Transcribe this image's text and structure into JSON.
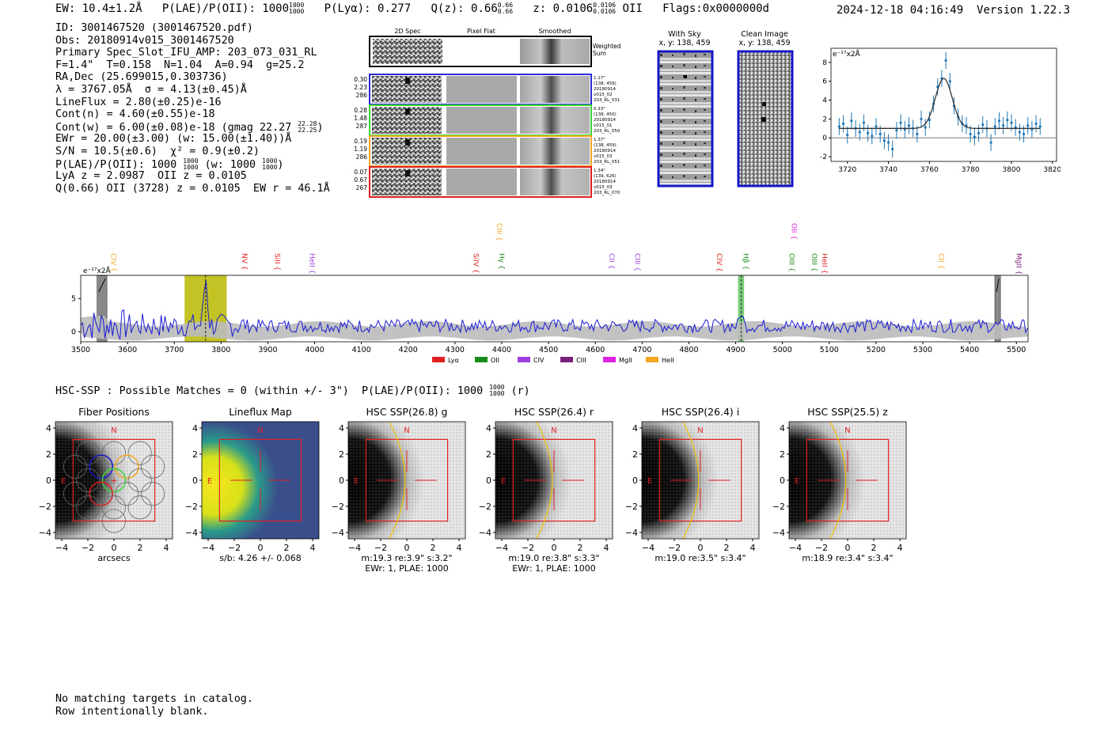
{
  "header": {
    "ew": "EW: 10.4±1.2Å",
    "plae_label": "P(LAE)/P(OII): 1000",
    "plae_sup": "1000",
    "plae_sub": "1000",
    "plya": "P(Lyα): 0.277",
    "qz_label": "Q(z): 0.66",
    "qz_sup": "0.66",
    "qz_sub": "0.66",
    "z_label": "z: 0.0106",
    "z_sup": "0.0106",
    "z_sub": "0.0106",
    "z_line": "OII",
    "flags": "Flags:0x0000000d",
    "datetime": "2024-12-18 04:16:49",
    "version": "Version 1.22.3"
  },
  "info": {
    "id": "ID: 3001467520 (3001467520.pdf)",
    "obs": "Obs: 20180914v015_3001467520",
    "primary": "Primary Spec_Slot_IFU_AMP: 203_073_031_RL",
    "params": "F=1.4\"  T=0.158  N=1.04  A=0.94  g=25.2",
    "radec": "RA,Dec (25.699015,0.303736)",
    "lambda": "λ = 3767.05Å  σ = 4.13(±0.45)Å",
    "lineflux": "LineFlux = 2.80(±0.25)e-16",
    "contn": "Cont(n) = 4.60(±0.55)e-18",
    "contw": "Cont(w) = 6.00(±0.08)e-18 (gmag 22.27",
    "gmag_sup": "22.28",
    "gmag_sub": "22.25",
    "ewr": "EWr = 20.00(±3.00) (w: 15.00(±1.40))Å",
    "sn": "S/N = 10.5(±0.6)  χ² = 0.9(±0.2)",
    "plae": "P(LAE)/P(OII): 1000",
    "plae_sup": "1000",
    "plae_sub": "1000",
    "plae_w": "(w: 1000",
    "plae_w_sup": "1000",
    "plae_w_sub": "1000",
    "lya_oii": "LyA z = 2.0987  OII z = 0.0105",
    "q_line": "Q(0.66) OII (3728) z = 0.0105  EW r = 46.1Å"
  },
  "spec_panel": {
    "col_headers": [
      "2D Spec",
      "Pixel Flat",
      "Smoothed"
    ],
    "weighted_label": "Weighted\nSum",
    "rows": [
      {
        "left": [
          "0.30",
          "2.23",
          "286"
        ],
        "right": [
          "1.17\"",
          "(138, 459)",
          "20180914",
          "v015_02",
          "203_RL_031"
        ],
        "color": "#2b2bd6"
      },
      {
        "left": [
          "0.28",
          "1.48",
          "287"
        ],
        "right": [
          "0.33\"",
          "(138, 450)",
          "20180914",
          "v015_01",
          "203_RL_050"
        ],
        "color": "#3ad63a"
      },
      {
        "left": [
          "0.19",
          "1.19",
          "286"
        ],
        "right": [
          "1.37\"",
          "(138, 459)",
          "20180914",
          "v015_03",
          "203_RL_051"
        ],
        "color": "#f5a623"
      },
      {
        "left": [
          "0.07",
          "0.67",
          "267"
        ],
        "right": [
          "1.34\"",
          "(139, 626)",
          "20180914",
          "v015_03",
          "203_RL_070"
        ],
        "color": "#e02020"
      }
    ]
  },
  "with_sky": {
    "title": "With Sky",
    "coords": "x, y: 138, 459"
  },
  "clean_image": {
    "title": "Clean Image",
    "coords": "x, y: 138, 459"
  },
  "chart_data": [
    {
      "type": "scatter",
      "title": "",
      "ylabel": "e⁻¹⁷x2Å",
      "xlim": [
        3712,
        3822
      ],
      "ylim": [
        -2.5,
        9.5
      ],
      "xticks": [
        3720,
        3740,
        3760,
        3780,
        3800,
        3820
      ],
      "yticks": [
        -2,
        0,
        2,
        4,
        6,
        8
      ],
      "x": [
        3716,
        3718,
        3720,
        3722,
        3724,
        3726,
        3728,
        3730,
        3732,
        3734,
        3736,
        3738,
        3740,
        3742,
        3744,
        3746,
        3748,
        3750,
        3752,
        3754,
        3756,
        3758,
        3760,
        3762,
        3764,
        3766,
        3768,
        3770,
        3772,
        3774,
        3776,
        3778,
        3780,
        3782,
        3784,
        3786,
        3788,
        3790,
        3792,
        3794,
        3796,
        3798,
        3800,
        3802,
        3804,
        3806,
        3808,
        3810,
        3812,
        3814
      ],
      "y": [
        1.2,
        1.5,
        0.3,
        1.8,
        1.0,
        0.6,
        1.6,
        0.5,
        0.2,
        1.2,
        0.4,
        -0.3,
        -0.5,
        -1.2,
        0.8,
        1.6,
        0.9,
        1.3,
        1.0,
        0.4,
        2.0,
        1.1,
        1.9,
        3.6,
        5.4,
        6.3,
        8.2,
        6.0,
        3.4,
        2.2,
        1.5,
        1.3,
        0.4,
        0.1,
        0.5,
        1.4,
        1.0,
        -0.5,
        1.2,
        1.8,
        1.3,
        1.9,
        1.6,
        1.1,
        0.6,
        0.4,
        1.3,
        0.9,
        1.5,
        1.2
      ],
      "fit": {
        "continuum": 1.0,
        "center": 3767,
        "amplitude": 5.3,
        "sigma": 4.13
      }
    },
    {
      "type": "line",
      "title": "",
      "ylabel": "e⁻¹⁷x2Å",
      "xlim": [
        3500,
        5525
      ],
      "ylim": [
        -1.5,
        8.5
      ],
      "xticks": [
        3500,
        3600,
        3700,
        3800,
        3900,
        4000,
        4100,
        4200,
        4300,
        4400,
        4500,
        4600,
        4700,
        4800,
        4900,
        5000,
        5100,
        5200,
        5300,
        5400,
        5500
      ],
      "yticks": [
        0,
        5
      ],
      "emission_peak": {
        "x": 3767,
        "y": 8.0
      },
      "secondary_peak": {
        "x": 4912,
        "y": 3.0
      },
      "highlight_band": [
        3722,
        3812
      ],
      "hbeta_band": [
        4905,
        4918
      ],
      "gray_bands": [
        [
          3535,
          3556
        ],
        [
          5454,
          5466
        ]
      ],
      "line_markers": [
        {
          "name": "CIV",
          "x": 3560,
          "color": "#f5a623"
        },
        {
          "name": "NV",
          "x": 3840,
          "color": "#e02020"
        },
        {
          "name": "SiII",
          "x": 3910,
          "color": "#e02020"
        },
        {
          "name": "HeII",
          "x": 3985,
          "color": "#9b3fe0"
        },
        {
          "name": "SiIV",
          "x": 4335,
          "color": "#e02020"
        },
        {
          "name": "CIII",
          "x": 4385,
          "color": "#f5a623"
        },
        {
          "name": "Hγ",
          "x": 4390,
          "color": "#1a8c1a"
        },
        {
          "name": "CII",
          "x": 4625,
          "color": "#9b3fe0"
        },
        {
          "name": "CIII",
          "x": 4680,
          "color": "#9b3fe0"
        },
        {
          "name": "CIV",
          "x": 4855,
          "color": "#e02020"
        },
        {
          "name": "Hβ",
          "x": 4912,
          "color": "#1a8c1a"
        },
        {
          "name": "OII",
          "x": 5015,
          "color": "#e020e0"
        },
        {
          "name": "OIII",
          "x": 5010,
          "color": "#1a8c1a"
        },
        {
          "name": "OIII",
          "x": 5058,
          "color": "#1a8c1a"
        },
        {
          "name": "HeII",
          "x": 5080,
          "color": "#e02020"
        },
        {
          "name": "CII",
          "x": 5330,
          "color": "#f5a623"
        },
        {
          "name": "MgII",
          "x": 5495,
          "color": "#7a1f7a"
        }
      ],
      "legend": [
        {
          "name": "Lyα",
          "color": "#e02020"
        },
        {
          "name": "OII",
          "color": "#1a8c1a"
        },
        {
          "name": "CIV",
          "color": "#9b3fe0"
        },
        {
          "name": "CIII",
          "color": "#7a1f7a"
        },
        {
          "name": "MgII",
          "color": "#e020e0"
        },
        {
          "name": "HeII",
          "color": "#f5a623"
        }
      ]
    }
  ],
  "hsc": {
    "title": "HSC-SSP : Possible Matches = 0 (within +/- 3\")  P(LAE)/P(OII): 1000",
    "plae_sup": "1000",
    "plae_sub": "1000",
    "band": "(r)",
    "axis_ticks": [
      "4",
      "2",
      "0",
      "−2",
      "−4"
    ],
    "x_ticks": [
      "−4",
      "−2",
      "0",
      "2",
      "4"
    ],
    "panels": [
      {
        "title": "Fiber Positions",
        "caption1": "arcsecs",
        "caption2": ""
      },
      {
        "title": "Lineflux Map",
        "caption1": "s/b: 4.26 +/- 0.068",
        "caption2": ""
      },
      {
        "title": "HSC SSP(26.8) g",
        "caption1": "m:19.3   re:3.9\"   s:3.2\"",
        "caption2": "EWr: 1, PLAE: 1000"
      },
      {
        "title": "HSC SSP(26.4) r",
        "caption1": "m:19.0   re:3.8\"   s:3.3\"",
        "caption2": "EWr: 1, PLAE: 1000"
      },
      {
        "title": "HSC SSP(26.4) i",
        "caption1": "m:19.0   re:3.5\"   s:3.4\"",
        "caption2": ""
      },
      {
        "title": "HSC SSP(25.5) z",
        "caption1": "m:18.9   re:3.4\"   s:3.4\"",
        "caption2": ""
      }
    ],
    "n_label": "N",
    "e_label": "E"
  },
  "footer": {
    "line1": "No matching targets in catalog.",
    "line2": "Row intentionally blank."
  },
  "colors": {
    "spectrum": "#1a1ad6",
    "error": "#bbbbbb",
    "highlight": "#b8b800",
    "hbeta": "#5cbf5c",
    "marker": "#1f77b4"
  }
}
